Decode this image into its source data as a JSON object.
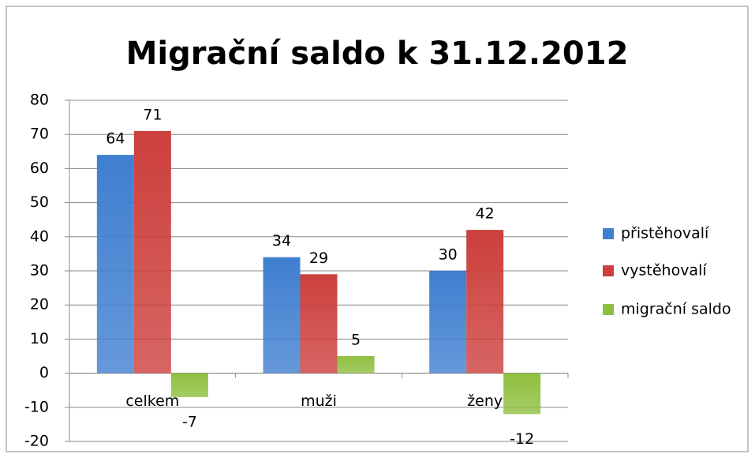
{
  "chart_data": {
    "type": "bar",
    "title": "Migrační saldo k 31.12.2012",
    "categories": [
      "celkem",
      "muži",
      "ženy"
    ],
    "series": [
      {
        "name": "přistěhovalí",
        "color": "#3f7fd0",
        "values": [
          64,
          34,
          30
        ]
      },
      {
        "name": "vystěhovalí",
        "color": "#cc3f3c",
        "values": [
          71,
          29,
          42
        ]
      },
      {
        "name": "migrační saldo",
        "color": "#8fbf3f",
        "values": [
          -7,
          5,
          -12
        ]
      }
    ],
    "ylim": [
      -20,
      80
    ],
    "yticks": [
      -20,
      -10,
      0,
      10,
      20,
      30,
      40,
      50,
      60,
      70,
      80
    ],
    "grid": true,
    "legend": "right"
  }
}
